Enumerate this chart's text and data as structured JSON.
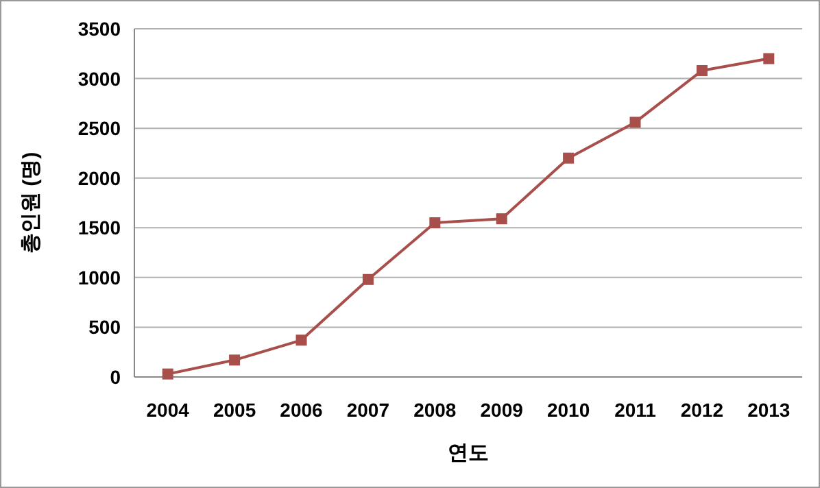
{
  "chart_data": {
    "type": "line",
    "xlabel": "연도",
    "ylabel": "총인원 (명)",
    "categories": [
      "2004",
      "2005",
      "2006",
      "2007",
      "2008",
      "2009",
      "2010",
      "2011",
      "2012",
      "2013"
    ],
    "series": [
      {
        "color": "#a84e4b",
        "values": [
          30,
          170,
          370,
          980,
          1550,
          1590,
          2200,
          2560,
          3080,
          3200
        ]
      }
    ],
    "ylim": [
      0,
      3500
    ],
    "yticks": [
      0,
      500,
      1000,
      1500,
      2000,
      2500,
      3000,
      3500
    ],
    "grid": "y",
    "marker": "square",
    "line_style": "solid"
  }
}
